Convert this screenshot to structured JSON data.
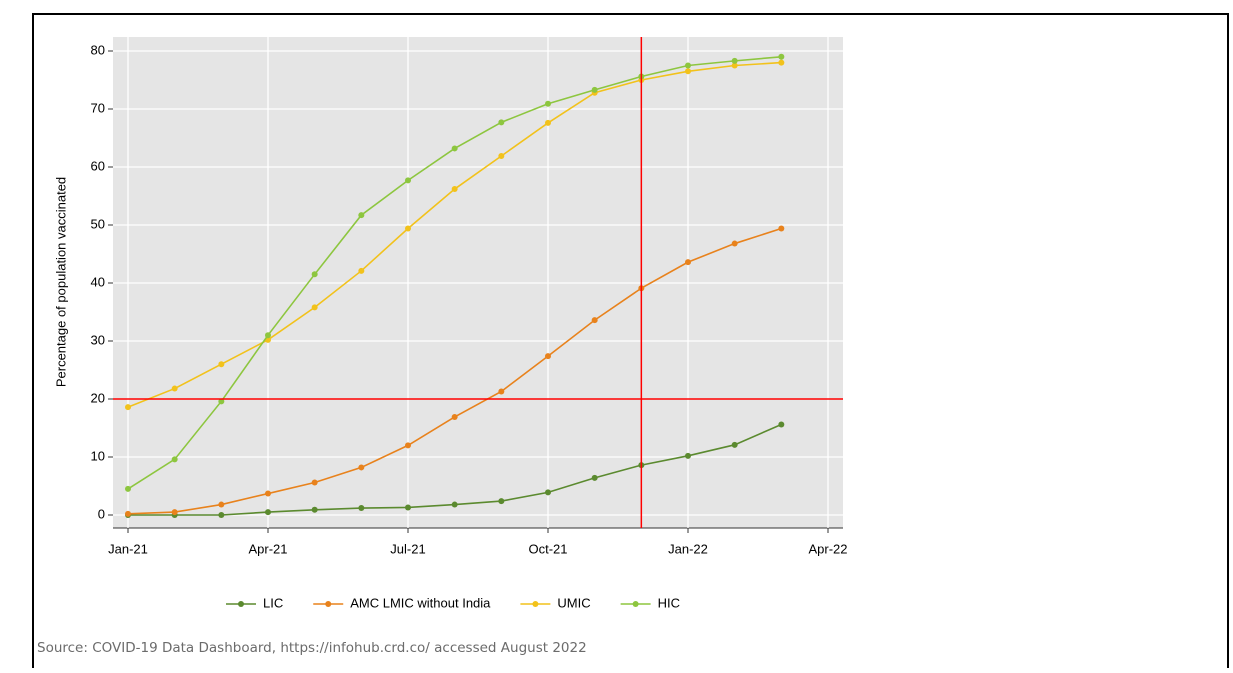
{
  "chart_data": {
    "type": "line",
    "y_label": "Percentage of population vaccinated",
    "x": [
      "2021-01",
      "2021-02",
      "2021-03",
      "2021-04",
      "2021-05",
      "2021-06",
      "2021-07",
      "2021-08",
      "2021-09",
      "2021-10",
      "2021-11",
      "2021-12",
      "2022-01",
      "2022-02",
      "2022-03"
    ],
    "series": [
      {
        "name": "LIC",
        "color": "#5b8a2f",
        "values": [
          0,
          0,
          0,
          0.5,
          0.9,
          1.2,
          1.3,
          1.8,
          2.4,
          3.9,
          6.4,
          8.6,
          10.2,
          12.1,
          15.6
        ]
      },
      {
        "name": "AMC LMIC without India",
        "color": "#e8821c",
        "values": [
          0.2,
          0.5,
          1.8,
          3.7,
          5.6,
          8.2,
          12,
          16.9,
          21.3,
          27.4,
          33.6,
          39.1,
          43.6,
          46.8,
          49.4
        ]
      },
      {
        "name": "UMIC",
        "color": "#f2c21b",
        "values": [
          18.6,
          21.8,
          26,
          30.2,
          35.8,
          42.1,
          49.4,
          56.2,
          61.9,
          67.6,
          72.8,
          75,
          76.5,
          77.5,
          78
        ]
      },
      {
        "name": "HIC",
        "color": "#8dc63f",
        "values": [
          4.5,
          9.6,
          19.6,
          31,
          41.5,
          51.7,
          57.7,
          63.2,
          67.7,
          70.9,
          73.3,
          75.6,
          77.5,
          78.3,
          79
        ]
      }
    ],
    "xlim": [
      "2021-01",
      "2022-04"
    ],
    "xticks": [
      {
        "value": "2021-01",
        "label": "Jan-21"
      },
      {
        "value": "2021-04",
        "label": "Apr-21"
      },
      {
        "value": "2021-07",
        "label": "Jul-21"
      },
      {
        "value": "2021-10",
        "label": "Oct-21"
      },
      {
        "value": "2022-01",
        "label": "Jan-22"
      },
      {
        "value": "2022-04",
        "label": "Apr-22"
      }
    ],
    "ylim": [
      0,
      80
    ],
    "yticks": [
      0,
      10,
      20,
      30,
      40,
      50,
      60,
      70,
      80
    ],
    "grid": true,
    "hline": {
      "value": 20,
      "color": "#ff0000"
    },
    "vline": {
      "value": "2021-12",
      "color": "#ff0000"
    },
    "legend": "bottom"
  },
  "source": "Source: COVID-19 Data Dashboard, https://infohub.crd.co/ accessed August 2022"
}
